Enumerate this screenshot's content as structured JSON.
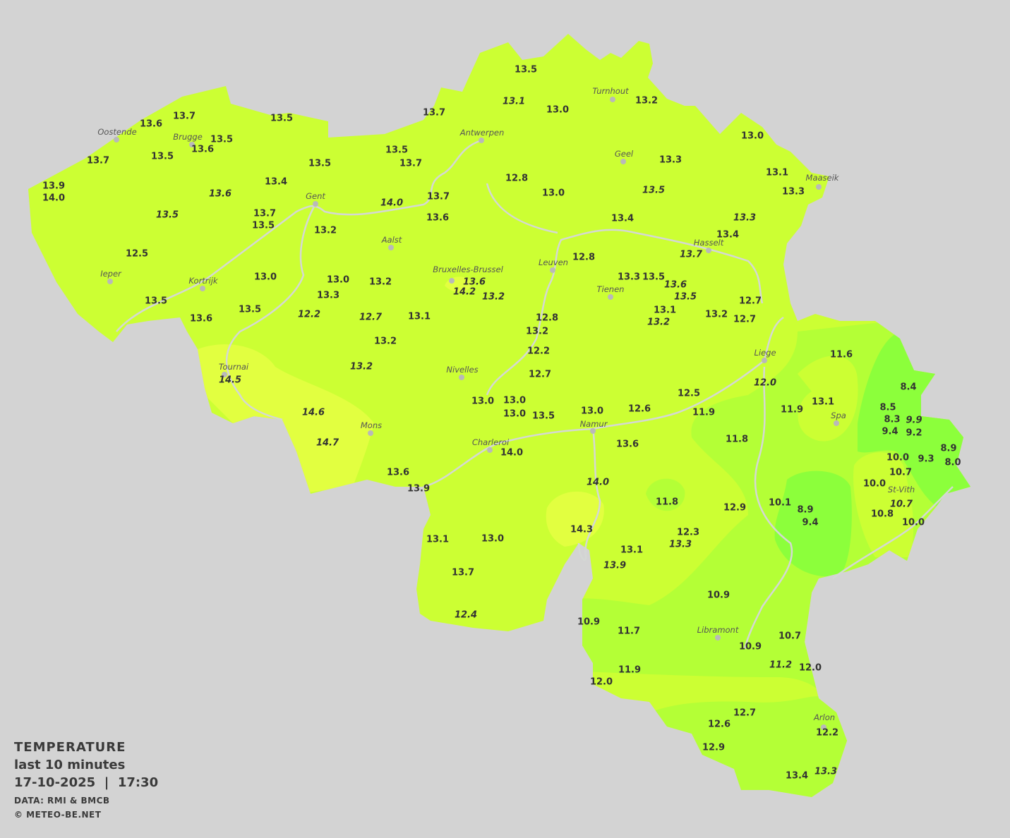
{
  "legend": {
    "title": "TEMPERATURE",
    "subtitle": "last 10 minutes",
    "date": "17-10-2025",
    "time": "17:30",
    "datetime_separator": "|",
    "source": "DATA: RMI & BMCB",
    "copyright": "© METEO-BE.NET"
  },
  "colors": {
    "background": "#d3d3d3",
    "base": "#ccff33",
    "warm": "#e2ff40",
    "cool": "#b4ff36",
    "cold": "#8cff3b",
    "river": "#d4d8d4",
    "text": "#333333"
  },
  "cities": [
    "Oostende",
    "Brugge",
    "Antwerpen",
    "Turnhout",
    "Geel",
    "Maaseik",
    "Gent",
    "Aalst",
    "Hasselt",
    "Leuven",
    "Bruxelles-Brussel",
    "Tienen",
    "Ieper",
    "Kortrijk",
    "Liege",
    "Tournai",
    "Nivelles",
    "Spa",
    "Mons",
    "Namur",
    "Charleroi",
    "St-Vith",
    "Libramont",
    "Arlon"
  ],
  "observations": [
    {
      "v": "13.5"
    },
    {
      "v": "13.1",
      "i": true
    },
    {
      "v": "13.0"
    },
    {
      "v": "13.2"
    },
    {
      "v": "13.7"
    },
    {
      "v": "13.6"
    },
    {
      "v": "13.5"
    },
    {
      "v": "13.7"
    },
    {
      "v": "13.5"
    },
    {
      "v": "13.6"
    },
    {
      "v": "13.7"
    },
    {
      "v": "13.5"
    },
    {
      "v": "13.5"
    },
    {
      "v": "13.7"
    },
    {
      "v": "13.5"
    },
    {
      "v": "13.0"
    },
    {
      "v": "13.3"
    },
    {
      "v": "12.8"
    },
    {
      "v": "13.0"
    },
    {
      "v": "13.5",
      "i": true
    },
    {
      "v": "13.1"
    },
    {
      "v": "13.3"
    },
    {
      "v": "13.9"
    },
    {
      "v": "14.0"
    },
    {
      "v": "13.4"
    },
    {
      "v": "13.6",
      "i": true
    },
    {
      "v": "13.7"
    },
    {
      "v": "14.0",
      "i": true
    },
    {
      "v": "13.5",
      "i": true
    },
    {
      "v": "13.7"
    },
    {
      "v": "13.5"
    },
    {
      "v": "13.6"
    },
    {
      "v": "13.2"
    },
    {
      "v": "13.4"
    },
    {
      "v": "13.3",
      "i": true
    },
    {
      "v": "13.4"
    },
    {
      "v": "13.7",
      "i": true
    },
    {
      "v": "12.5"
    },
    {
      "v": "12.8"
    },
    {
      "v": "13.0"
    },
    {
      "v": "13.0"
    },
    {
      "v": "13.2"
    },
    {
      "v": "13.3"
    },
    {
      "v": "13.5"
    },
    {
      "v": "13.6",
      "i": true
    },
    {
      "v": "14.2",
      "i": true
    },
    {
      "v": "13.2",
      "i": true
    },
    {
      "v": "13.6",
      "i": true
    },
    {
      "v": "13.5",
      "i": true
    },
    {
      "v": "13.3"
    },
    {
      "v": "13.5"
    },
    {
      "v": "12.7"
    },
    {
      "v": "13.5"
    },
    {
      "v": "13.6"
    },
    {
      "v": "12.2",
      "i": true
    },
    {
      "v": "12.7",
      "i": true
    },
    {
      "v": "13.1"
    },
    {
      "v": "12.8"
    },
    {
      "v": "13.1"
    },
    {
      "v": "13.2",
      "i": true
    },
    {
      "v": "13.2"
    },
    {
      "v": "12.7"
    },
    {
      "v": "13.2"
    },
    {
      "v": "13.2"
    },
    {
      "v": "12.2"
    },
    {
      "v": "11.6"
    },
    {
      "v": "14.5",
      "i": true
    },
    {
      "v": "13.2",
      "i": true
    },
    {
      "v": "12.7"
    },
    {
      "v": "12.0",
      "i": true
    },
    {
      "v": "8.4"
    },
    {
      "v": "13.0"
    },
    {
      "v": "13.0"
    },
    {
      "v": "13.0"
    },
    {
      "v": "13.5"
    },
    {
      "v": "12.5"
    },
    {
      "v": "13.0"
    },
    {
      "v": "12.6"
    },
    {
      "v": "11.9"
    },
    {
      "v": "11.9"
    },
    {
      "v": "13.1"
    },
    {
      "v": "8.5"
    },
    {
      "v": "8.3"
    },
    {
      "v": "9.4"
    },
    {
      "v": "9.9",
      "i": true
    },
    {
      "v": "9.2"
    },
    {
      "v": "14.6",
      "i": true
    },
    {
      "v": "14.7",
      "i": true
    },
    {
      "v": "11.8"
    },
    {
      "v": "13.6"
    },
    {
      "v": "14.0"
    },
    {
      "v": "10.0"
    },
    {
      "v": "8.9"
    },
    {
      "v": "9.3"
    },
    {
      "v": "8.0"
    },
    {
      "v": "10.7"
    },
    {
      "v": "13.6"
    },
    {
      "v": "13.9"
    },
    {
      "v": "14.0",
      "i": true
    },
    {
      "v": "10.0"
    },
    {
      "v": "10.7",
      "i": true
    },
    {
      "v": "10.1"
    },
    {
      "v": "11.8"
    },
    {
      "v": "12.9"
    },
    {
      "v": "8.9"
    },
    {
      "v": "10.8"
    },
    {
      "v": "10.0"
    },
    {
      "v": "9.4"
    },
    {
      "v": "14.3"
    },
    {
      "v": "12.3"
    },
    {
      "v": "13.3",
      "i": true
    },
    {
      "v": "13.1"
    },
    {
      "v": "13.0"
    },
    {
      "v": "13.1"
    },
    {
      "v": "13.9",
      "i": true
    },
    {
      "v": "13.7"
    },
    {
      "v": "10.9"
    },
    {
      "v": "12.4",
      "i": true
    },
    {
      "v": "10.9"
    },
    {
      "v": "11.7"
    },
    {
      "v": "10.7"
    },
    {
      "v": "10.9"
    },
    {
      "v": "11.2",
      "i": true
    },
    {
      "v": "12.0"
    },
    {
      "v": "11.9"
    },
    {
      "v": "12.0"
    },
    {
      "v": "12.7"
    },
    {
      "v": "12.6"
    },
    {
      "v": "12.2"
    },
    {
      "v": "12.9"
    },
    {
      "v": "13.4"
    },
    {
      "v": "13.3",
      "i": true
    }
  ]
}
